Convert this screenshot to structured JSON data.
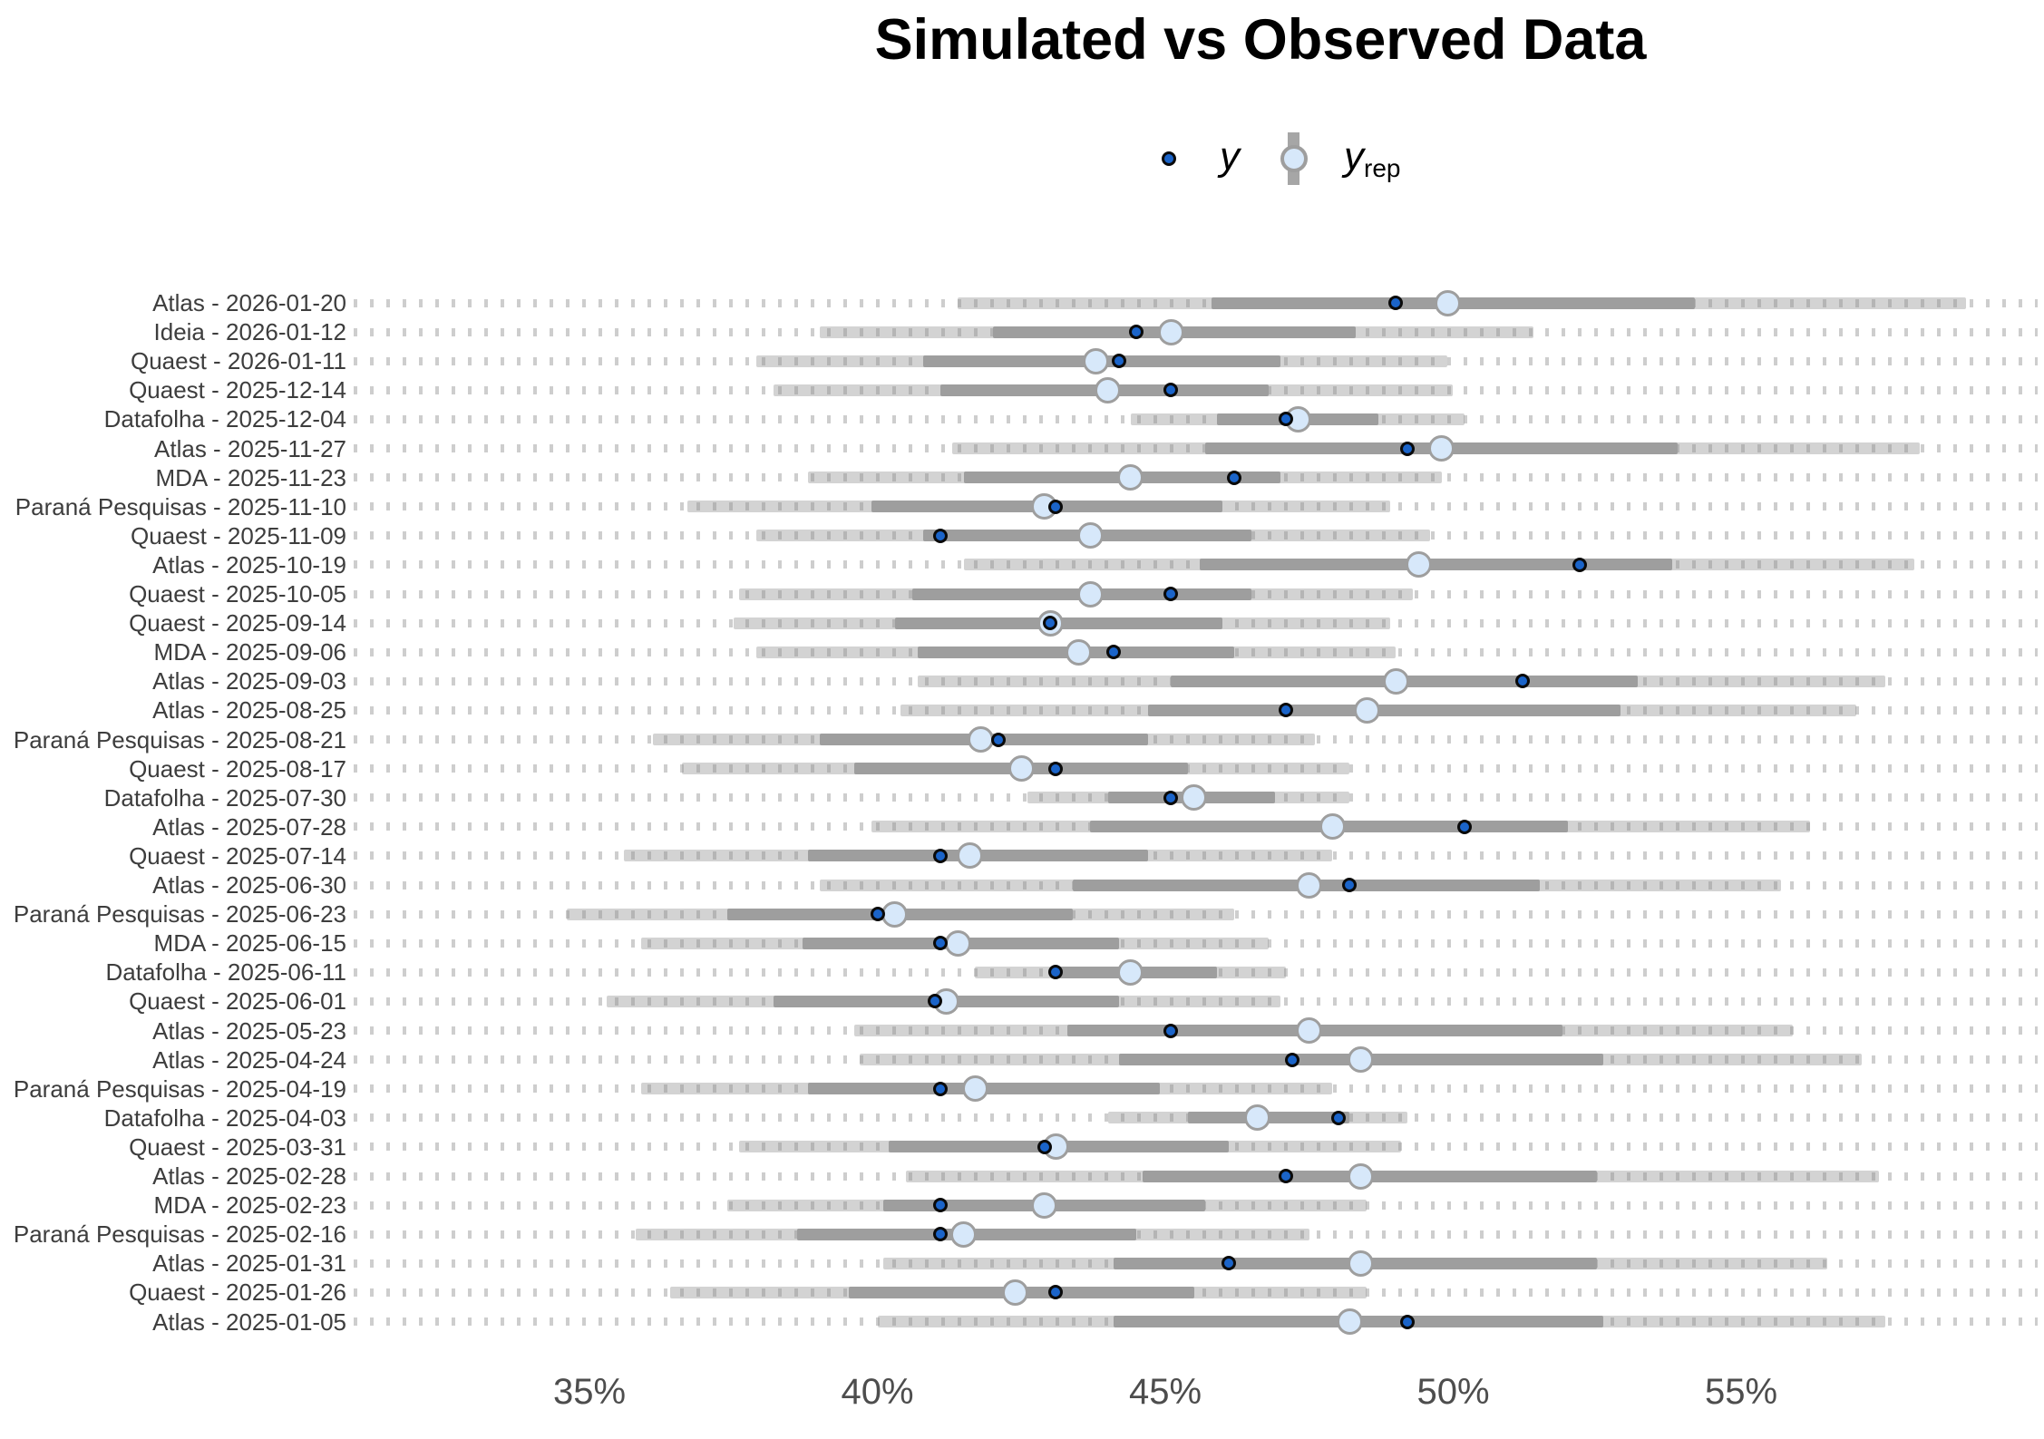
{
  "title": "Simulated vs Observed Data",
  "legend": {
    "y_label": "y",
    "yrep_main": "y",
    "yrep_sub": "rep"
  },
  "colors": {
    "y_point_fill": "#1b64c9",
    "y_point_stroke": "#0a0a0a",
    "yrep_fill": "#d7e8fa",
    "yrep_stroke": "#9e9e9e",
    "inner_interval": "#9e9e9e",
    "outer_interval": "#d3d3d3",
    "grid_dots": "#cfcfcf",
    "label_text": "#3d3d3d",
    "tick_text": "#4d4d4d"
  },
  "chart_data": {
    "type": "scatter",
    "title": "Simulated vs Observed Data",
    "xlabel": "",
    "ylabel": "",
    "unit": "%",
    "x_ticks": [
      "35%",
      "40%",
      "45%",
      "50%",
      "55%"
    ],
    "x_tick_values": [
      35,
      40,
      45,
      50,
      55
    ],
    "xlim": [
      30.9,
      60.2
    ],
    "legend_entries": [
      "y",
      "yrep"
    ],
    "legend_position": "top-center",
    "grid": "horizontal-dotted-lines",
    "description": "Posterior predictive check: observed poll values y (dark blue dots) vs simulated y_rep medians (light blue circles) with inner (dark gray) and outer (light gray) predictive intervals, in percent.",
    "rows": [
      {
        "label": "Atlas - 2026-01-20",
        "y": 49.0,
        "yrep_median": 49.9,
        "inner_interval": [
          45.8,
          54.2
        ],
        "outer_interval": [
          41.4,
          58.9
        ]
      },
      {
        "label": "Ideia - 2026-01-12",
        "y": 44.5,
        "yrep_median": 45.1,
        "inner_interval": [
          42.0,
          48.3
        ],
        "outer_interval": [
          39.0,
          51.4
        ]
      },
      {
        "label": "Quaest - 2026-01-11",
        "y": 44.2,
        "yrep_median": 43.8,
        "inner_interval": [
          40.8,
          47.0
        ],
        "outer_interval": [
          37.9,
          49.9
        ]
      },
      {
        "label": "Quaest - 2025-12-14",
        "y": 45.1,
        "yrep_median": 44.0,
        "inner_interval": [
          41.1,
          46.8
        ],
        "outer_interval": [
          38.2,
          50.0
        ]
      },
      {
        "label": "Datafolha - 2025-12-04",
        "y": 47.1,
        "yrep_median": 47.3,
        "inner_interval": [
          45.9,
          48.7
        ],
        "outer_interval": [
          44.4,
          50.2
        ]
      },
      {
        "label": "Atlas - 2025-11-27",
        "y": 49.2,
        "yrep_median": 49.8,
        "inner_interval": [
          45.7,
          53.9
        ],
        "outer_interval": [
          41.3,
          58.1
        ]
      },
      {
        "label": "MDA - 2025-11-23",
        "y": 46.2,
        "yrep_median": 44.4,
        "inner_interval": [
          41.5,
          47.0
        ],
        "outer_interval": [
          38.8,
          49.8
        ]
      },
      {
        "label": "Paraná Pesquisas - 2025-11-10",
        "y": 43.1,
        "yrep_median": 42.9,
        "inner_interval": [
          39.9,
          46.0
        ],
        "outer_interval": [
          36.7,
          48.9
        ]
      },
      {
        "label": "Quaest - 2025-11-09",
        "y": 41.1,
        "yrep_median": 43.7,
        "inner_interval": [
          40.8,
          46.5
        ],
        "outer_interval": [
          37.9,
          49.6
        ]
      },
      {
        "label": "Atlas - 2025-10-19",
        "y": 52.2,
        "yrep_median": 49.4,
        "inner_interval": [
          45.6,
          53.8
        ],
        "outer_interval": [
          41.5,
          58.0
        ]
      },
      {
        "label": "Quaest - 2025-10-05",
        "y": 45.1,
        "yrep_median": 43.7,
        "inner_interval": [
          40.6,
          46.5
        ],
        "outer_interval": [
          37.6,
          49.3
        ]
      },
      {
        "label": "Quaest - 2025-09-14",
        "y": 43.0,
        "yrep_median": 43.0,
        "inner_interval": [
          40.3,
          46.0
        ],
        "outer_interval": [
          37.5,
          48.9
        ]
      },
      {
        "label": "MDA - 2025-09-06",
        "y": 44.1,
        "yrep_median": 43.5,
        "inner_interval": [
          40.7,
          46.2
        ],
        "outer_interval": [
          37.9,
          49.0
        ]
      },
      {
        "label": "Atlas - 2025-09-03",
        "y": 51.2,
        "yrep_median": 49.0,
        "inner_interval": [
          45.1,
          53.2
        ],
        "outer_interval": [
          40.7,
          57.5
        ]
      },
      {
        "label": "Atlas - 2025-08-25",
        "y": 47.1,
        "yrep_median": 48.5,
        "inner_interval": [
          44.7,
          52.9
        ],
        "outer_interval": [
          40.4,
          57.0
        ]
      },
      {
        "label": "Paraná Pesquisas - 2025-08-21",
        "y": 42.1,
        "yrep_median": 41.8,
        "inner_interval": [
          39.0,
          44.7
        ],
        "outer_interval": [
          36.1,
          47.6
        ]
      },
      {
        "label": "Quaest - 2025-08-17",
        "y": 43.1,
        "yrep_median": 42.5,
        "inner_interval": [
          39.6,
          45.4
        ],
        "outer_interval": [
          36.6,
          48.2
        ]
      },
      {
        "label": "Datafolha - 2025-07-30",
        "y": 45.1,
        "yrep_median": 45.5,
        "inner_interval": [
          44.0,
          46.9
        ],
        "outer_interval": [
          42.6,
          48.2
        ]
      },
      {
        "label": "Atlas - 2025-07-28",
        "y": 50.2,
        "yrep_median": 47.9,
        "inner_interval": [
          43.7,
          52.0
        ],
        "outer_interval": [
          39.9,
          56.2
        ]
      },
      {
        "label": "Quaest - 2025-07-14",
        "y": 41.1,
        "yrep_median": 41.6,
        "inner_interval": [
          38.8,
          44.7
        ],
        "outer_interval": [
          35.6,
          47.9
        ]
      },
      {
        "label": "Atlas - 2025-06-30",
        "y": 48.2,
        "yrep_median": 47.5,
        "inner_interval": [
          43.4,
          51.5
        ],
        "outer_interval": [
          39.0,
          55.7
        ]
      },
      {
        "label": "Paraná Pesquisas - 2025-06-23",
        "y": 40.0,
        "yrep_median": 40.3,
        "inner_interval": [
          37.4,
          43.4
        ],
        "outer_interval": [
          34.6,
          46.2
        ]
      },
      {
        "label": "MDA - 2025-06-15",
        "y": 41.1,
        "yrep_median": 41.4,
        "inner_interval": [
          38.7,
          44.2
        ],
        "outer_interval": [
          35.9,
          46.8
        ]
      },
      {
        "label": "Datafolha - 2025-06-11",
        "y": 43.1,
        "yrep_median": 44.4,
        "inner_interval": [
          43.1,
          45.9
        ],
        "outer_interval": [
          41.7,
          47.1
        ]
      },
      {
        "label": "Quaest - 2025-06-01",
        "y": 41.0,
        "yrep_median": 41.2,
        "inner_interval": [
          38.2,
          44.2
        ],
        "outer_interval": [
          35.3,
          47.0
        ]
      },
      {
        "label": "Atlas - 2025-05-23",
        "y": 45.1,
        "yrep_median": 47.5,
        "inner_interval": [
          43.3,
          51.9
        ],
        "outer_interval": [
          39.6,
          55.9
        ]
      },
      {
        "label": "Atlas - 2025-04-24",
        "y": 47.2,
        "yrep_median": 48.4,
        "inner_interval": [
          44.2,
          52.6
        ],
        "outer_interval": [
          39.7,
          57.1
        ]
      },
      {
        "label": "Paraná Pesquisas - 2025-04-19",
        "y": 41.1,
        "yrep_median": 41.7,
        "inner_interval": [
          38.8,
          44.9
        ],
        "outer_interval": [
          35.9,
          47.9
        ]
      },
      {
        "label": "Datafolha - 2025-04-03",
        "y": 48.0,
        "yrep_median": 46.6,
        "inner_interval": [
          45.4,
          48.2
        ],
        "outer_interval": [
          44.0,
          49.2
        ]
      },
      {
        "label": "Quaest - 2025-03-31",
        "y": 42.9,
        "yrep_median": 43.1,
        "inner_interval": [
          40.2,
          46.1
        ],
        "outer_interval": [
          37.6,
          49.1
        ]
      },
      {
        "label": "Atlas - 2025-02-28",
        "y": 47.1,
        "yrep_median": 48.4,
        "inner_interval": [
          44.6,
          52.5
        ],
        "outer_interval": [
          40.5,
          57.4
        ]
      },
      {
        "label": "MDA - 2025-02-23",
        "y": 41.1,
        "yrep_median": 42.9,
        "inner_interval": [
          40.1,
          45.7
        ],
        "outer_interval": [
          37.4,
          48.5
        ]
      },
      {
        "label": "Paraná Pesquisas - 2025-02-16",
        "y": 41.1,
        "yrep_median": 41.5,
        "inner_interval": [
          38.6,
          44.5
        ],
        "outer_interval": [
          35.8,
          47.5
        ]
      },
      {
        "label": "Atlas - 2025-01-31",
        "y": 46.1,
        "yrep_median": 48.4,
        "inner_interval": [
          44.1,
          52.5
        ],
        "outer_interval": [
          40.1,
          56.5
        ]
      },
      {
        "label": "Quaest - 2025-01-26",
        "y": 43.1,
        "yrep_median": 42.4,
        "inner_interval": [
          39.5,
          45.5
        ],
        "outer_interval": [
          36.4,
          48.5
        ]
      },
      {
        "label": "Atlas - 2025-01-05",
        "y": 49.2,
        "yrep_median": 48.2,
        "inner_interval": [
          44.1,
          52.6
        ],
        "outer_interval": [
          40.0,
          57.5
        ]
      }
    ]
  }
}
